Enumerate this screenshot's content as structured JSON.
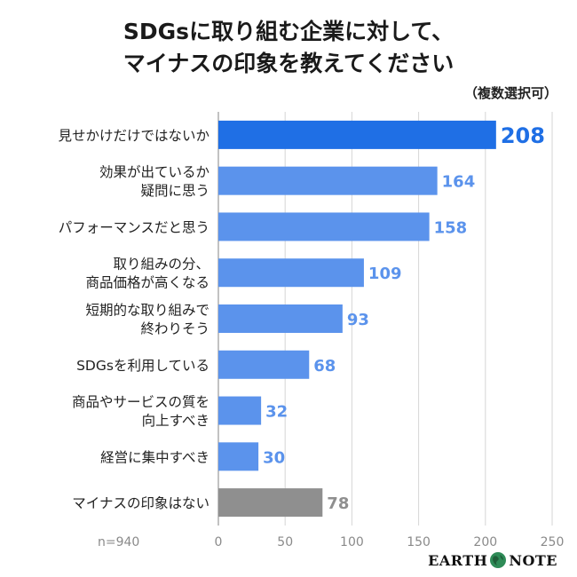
{
  "header": {
    "title_line1": "SDGsに取り組む企業に対して、",
    "title_line2": "マイナスの印象を教えてください",
    "subtitle": "（複数選択可）"
  },
  "footer": {
    "sample_note": "n=940",
    "logo_left": "EARTH",
    "logo_right": "NOTE"
  },
  "colors": {
    "highlight": "#1f6fe5",
    "bar": "#5b93ec",
    "none": "#8f8f8f",
    "label_highlight": "#1f6fe5",
    "label_bar": "#5b93ec",
    "label_none": "#8f8f8f"
  },
  "chart_data": {
    "type": "bar",
    "orientation": "horizontal",
    "categories": [
      [
        "見せかけだけではないか"
      ],
      [
        "効果が出ているか",
        "疑問に思う"
      ],
      [
        "パフォーマンスだと思う"
      ],
      [
        "取り組みの分、",
        "商品価格が高くなる"
      ],
      [
        "短期的な取り組みで",
        "終わりそう"
      ],
      [
        "SDGsを利用している"
      ],
      [
        "商品やサービスの質を",
        "向上すべき"
      ],
      [
        "経営に集中すべき"
      ],
      [
        "マイナスの印象はない"
      ]
    ],
    "values": [
      208,
      164,
      158,
      109,
      93,
      68,
      32,
      30,
      78
    ],
    "value_labels": [
      "208",
      "164",
      "158",
      "109",
      "93",
      "68",
      "32",
      "30",
      "78"
    ],
    "styles": [
      "highlight",
      "bar",
      "bar",
      "bar",
      "bar",
      "bar",
      "bar",
      "bar",
      "none"
    ],
    "xlim": [
      0,
      250
    ],
    "xticks": [
      0,
      50,
      100,
      150,
      200,
      250
    ],
    "xtick_labels": [
      "0",
      "50",
      "100",
      "150",
      "200",
      "250"
    ],
    "grid": true
  }
}
